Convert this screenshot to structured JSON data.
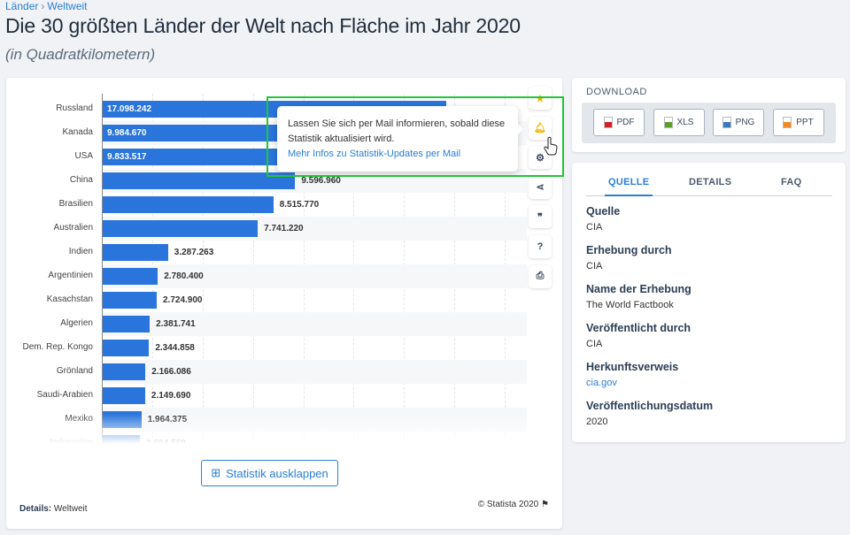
{
  "breadcrumb": [
    "Länder",
    "Weltweit"
  ],
  "title": "Die 30 größten Länder der Welt nach Fläche im Jahr 2020",
  "subtitle": "(in Quadratkilometern)",
  "chart_data": {
    "type": "bar",
    "orientation": "horizontal",
    "categories": [
      "Russland",
      "Kanada",
      "USA",
      "China",
      "Brasilien",
      "Australien",
      "Indien",
      "Argentinien",
      "Kasachstan",
      "Algerien",
      "Dem. Rep. Kongo",
      "Grönland",
      "Saudi-Arabien",
      "Mexiko",
      "Indonesien"
    ],
    "values": [
      17098242,
      9984670,
      9833517,
      9596960,
      8515770,
      7741220,
      3287263,
      2780400,
      2724900,
      2381741,
      2344858,
      2166086,
      2149690,
      1964375,
      1904569
    ],
    "labels": [
      "17.098.242",
      "9.984.670",
      "9.833.517",
      "9.596.960",
      "8.515.770",
      "7.741.220",
      "3.287.263",
      "2.780.400",
      "2.724.900",
      "2.381.741",
      "2.344.858",
      "2.166.086",
      "2.149.690",
      "1.964.375",
      "1.904.569"
    ],
    "xlim": [
      0,
      20000000
    ],
    "grid": true,
    "unit": "km²",
    "color": "#2a75db"
  },
  "actions": [
    "star-icon",
    "bell-icon",
    "gear-icon",
    "share-icon",
    "quote-icon",
    "help-icon",
    "print-icon"
  ],
  "tooltip": {
    "text": "Lassen Sie sich per Mail informieren, sobald diese Statistik aktualisiert wird.",
    "link": "Mehr Infos zu Statistik-Updates per Mail"
  },
  "expand_label": "Statistik ausklappen",
  "details": {
    "label": "Details:",
    "value": "Weltweit"
  },
  "copyright": "© Statista 2020",
  "download": {
    "title": "DOWNLOAD",
    "buttons": [
      {
        "label": "PDF",
        "color": "#d0202a"
      },
      {
        "label": "XLS",
        "color": "#5aa02c"
      },
      {
        "label": "PNG",
        "color": "#3a7ac0"
      },
      {
        "label": "PPT",
        "color": "#f08a24"
      }
    ]
  },
  "source": {
    "tabs": [
      "QUELLE",
      "DETAILS",
      "FAQ"
    ],
    "fields": [
      {
        "k": "Quelle",
        "v": "CIA"
      },
      {
        "k": "Erhebung durch",
        "v": "CIA"
      },
      {
        "k": "Name der Erhebung",
        "v": "The World Factbook"
      },
      {
        "k": "Veröffentlicht durch",
        "v": "CIA"
      },
      {
        "k": "Herkunftsverweis",
        "v": "cia.gov"
      },
      {
        "k": "Veröffentlichungsdatum",
        "v": "2020"
      }
    ]
  }
}
